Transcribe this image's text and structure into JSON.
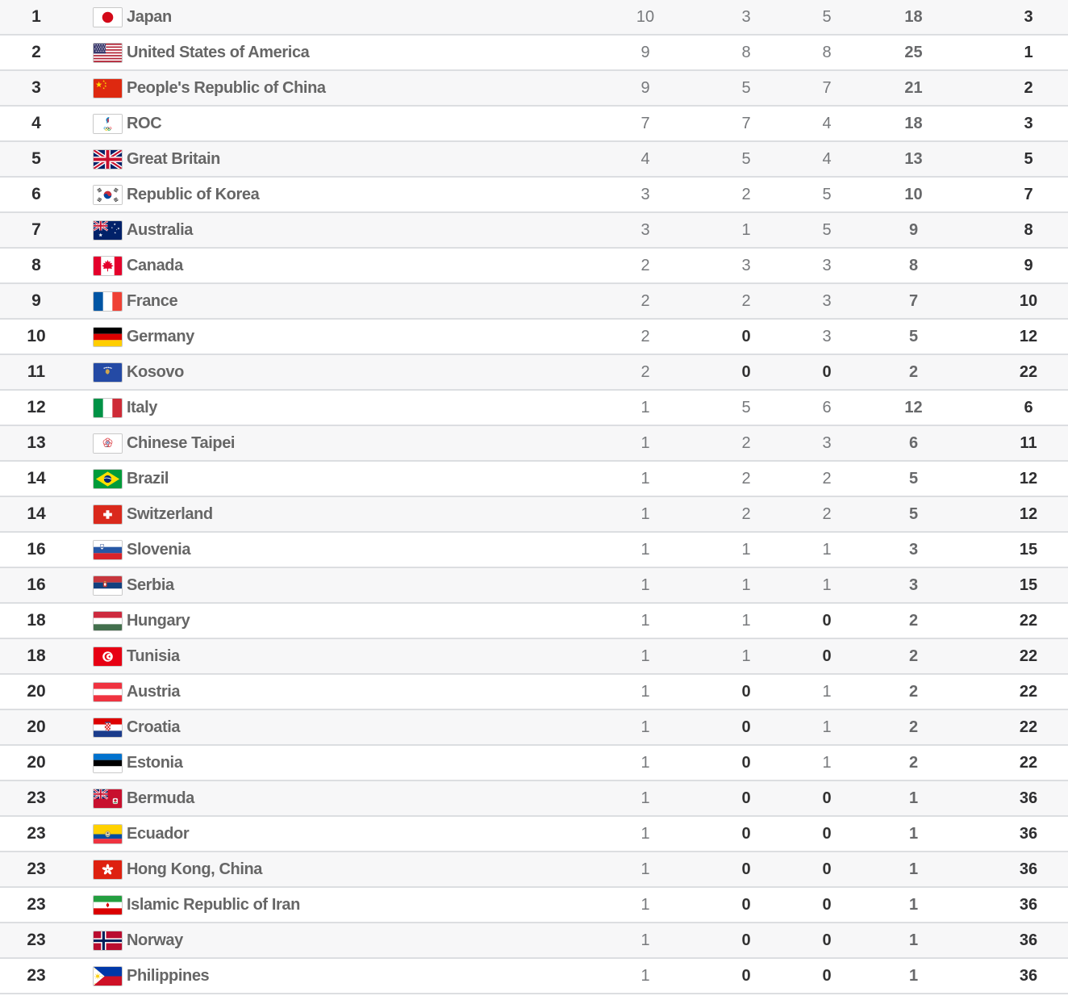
{
  "table": {
    "rows": [
      {
        "rank": "1",
        "flag": "japan",
        "country": "Japan",
        "gold": "10",
        "silver": "3",
        "bronze": "5",
        "total": "18",
        "rank_by_total": "3"
      },
      {
        "rank": "2",
        "flag": "united-states",
        "country": "United States of America",
        "gold": "9",
        "silver": "8",
        "bronze": "8",
        "total": "25",
        "rank_by_total": "1"
      },
      {
        "rank": "3",
        "flag": "china",
        "country": "People's Republic of China",
        "gold": "9",
        "silver": "5",
        "bronze": "7",
        "total": "21",
        "rank_by_total": "2"
      },
      {
        "rank": "4",
        "flag": "roc",
        "country": "ROC",
        "gold": "7",
        "silver": "7",
        "bronze": "4",
        "total": "18",
        "rank_by_total": "3"
      },
      {
        "rank": "5",
        "flag": "great-britain",
        "country": "Great Britain",
        "gold": "4",
        "silver": "5",
        "bronze": "4",
        "total": "13",
        "rank_by_total": "5"
      },
      {
        "rank": "6",
        "flag": "korea",
        "country": "Republic of Korea",
        "gold": "3",
        "silver": "2",
        "bronze": "5",
        "total": "10",
        "rank_by_total": "7"
      },
      {
        "rank": "7",
        "flag": "australia",
        "country": "Australia",
        "gold": "3",
        "silver": "1",
        "bronze": "5",
        "total": "9",
        "rank_by_total": "8"
      },
      {
        "rank": "8",
        "flag": "canada",
        "country": "Canada",
        "gold": "2",
        "silver": "3",
        "bronze": "3",
        "total": "8",
        "rank_by_total": "9"
      },
      {
        "rank": "9",
        "flag": "france",
        "country": "France",
        "gold": "2",
        "silver": "2",
        "bronze": "3",
        "total": "7",
        "rank_by_total": "10"
      },
      {
        "rank": "10",
        "flag": "germany",
        "country": "Germany",
        "gold": "2",
        "silver": "0",
        "bronze": "3",
        "total": "5",
        "rank_by_total": "12"
      },
      {
        "rank": "11",
        "flag": "kosovo",
        "country": "Kosovo",
        "gold": "2",
        "silver": "0",
        "bronze": "0",
        "total": "2",
        "rank_by_total": "22"
      },
      {
        "rank": "12",
        "flag": "italy",
        "country": "Italy",
        "gold": "1",
        "silver": "5",
        "bronze": "6",
        "total": "12",
        "rank_by_total": "6"
      },
      {
        "rank": "13",
        "flag": "chinese-taipei",
        "country": "Chinese Taipei",
        "gold": "1",
        "silver": "2",
        "bronze": "3",
        "total": "6",
        "rank_by_total": "11"
      },
      {
        "rank": "14",
        "flag": "brazil",
        "country": "Brazil",
        "gold": "1",
        "silver": "2",
        "bronze": "2",
        "total": "5",
        "rank_by_total": "12"
      },
      {
        "rank": "14",
        "flag": "switzerland",
        "country": "Switzerland",
        "gold": "1",
        "silver": "2",
        "bronze": "2",
        "total": "5",
        "rank_by_total": "12"
      },
      {
        "rank": "16",
        "flag": "slovenia",
        "country": "Slovenia",
        "gold": "1",
        "silver": "1",
        "bronze": "1",
        "total": "3",
        "rank_by_total": "15"
      },
      {
        "rank": "16",
        "flag": "serbia",
        "country": "Serbia",
        "gold": "1",
        "silver": "1",
        "bronze": "1",
        "total": "3",
        "rank_by_total": "15"
      },
      {
        "rank": "18",
        "flag": "hungary",
        "country": "Hungary",
        "gold": "1",
        "silver": "1",
        "bronze": "0",
        "total": "2",
        "rank_by_total": "22"
      },
      {
        "rank": "18",
        "flag": "tunisia",
        "country": "Tunisia",
        "gold": "1",
        "silver": "1",
        "bronze": "0",
        "total": "2",
        "rank_by_total": "22"
      },
      {
        "rank": "20",
        "flag": "austria",
        "country": "Austria",
        "gold": "1",
        "silver": "0",
        "bronze": "1",
        "total": "2",
        "rank_by_total": "22"
      },
      {
        "rank": "20",
        "flag": "croatia",
        "country": "Croatia",
        "gold": "1",
        "silver": "0",
        "bronze": "1",
        "total": "2",
        "rank_by_total": "22"
      },
      {
        "rank": "20",
        "flag": "estonia",
        "country": "Estonia",
        "gold": "1",
        "silver": "0",
        "bronze": "1",
        "total": "2",
        "rank_by_total": "22"
      },
      {
        "rank": "23",
        "flag": "bermuda",
        "country": "Bermuda",
        "gold": "1",
        "silver": "0",
        "bronze": "0",
        "total": "1",
        "rank_by_total": "36"
      },
      {
        "rank": "23",
        "flag": "ecuador",
        "country": "Ecuador",
        "gold": "1",
        "silver": "0",
        "bronze": "0",
        "total": "1",
        "rank_by_total": "36"
      },
      {
        "rank": "23",
        "flag": "hong-kong",
        "country": "Hong Kong, China",
        "gold": "1",
        "silver": "0",
        "bronze": "0",
        "total": "1",
        "rank_by_total": "36"
      },
      {
        "rank": "23",
        "flag": "iran",
        "country": "Islamic Republic of Iran",
        "gold": "1",
        "silver": "0",
        "bronze": "0",
        "total": "1",
        "rank_by_total": "36"
      },
      {
        "rank": "23",
        "flag": "norway",
        "country": "Norway",
        "gold": "1",
        "silver": "0",
        "bronze": "0",
        "total": "1",
        "rank_by_total": "36"
      },
      {
        "rank": "23",
        "flag": "philippines",
        "country": "Philippines",
        "gold": "1",
        "silver": "0",
        "bronze": "0",
        "total": "1",
        "rank_by_total": "36"
      }
    ]
  },
  "colors": {
    "row_stripe": "#f7f7f8",
    "row_border": "#dcdee1",
    "rank_text": "#2e2e30",
    "country_text": "#666666",
    "medal_text": "#77797c",
    "zero_text": "#333333",
    "total_text": "#68696b"
  }
}
